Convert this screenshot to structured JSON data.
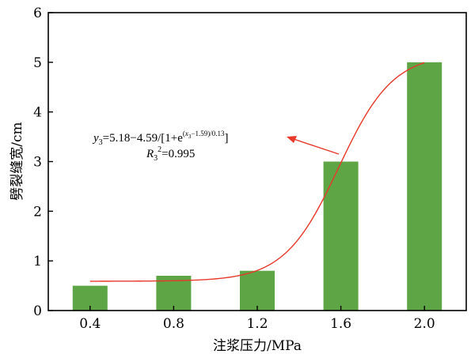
{
  "chart_data": {
    "type": "bar",
    "categories": [
      "0.4",
      "0.8",
      "1.2",
      "1.6",
      "2.0"
    ],
    "x": [
      0.4,
      0.8,
      1.2,
      1.6,
      2.0
    ],
    "values": [
      0.5,
      0.7,
      0.8,
      3.0,
      5.0
    ],
    "xlabel": "注浆压力/MPa",
    "ylabel": "劈裂缝宽/cm",
    "xlim": [
      0.2,
      2.2
    ],
    "ylim": [
      0,
      6
    ],
    "yticks": [
      "0",
      "1",
      "2",
      "3",
      "4",
      "5",
      "6"
    ],
    "fit_curve": {
      "type": "line",
      "color": "#e8382a",
      "equation_line1": "y3=5.18−4.59/[1+e(x3−1.59)/0.13]",
      "equation_line2": "R3²=0.995",
      "params": {
        "a": 5.18,
        "b": 4.59,
        "x0": 1.59,
        "dx": 0.13
      },
      "x_range": [
        0.4,
        2.0
      ]
    },
    "colors": {
      "bar": "#5ea645",
      "curve": "#e8382a",
      "axis": "#000000"
    }
  }
}
